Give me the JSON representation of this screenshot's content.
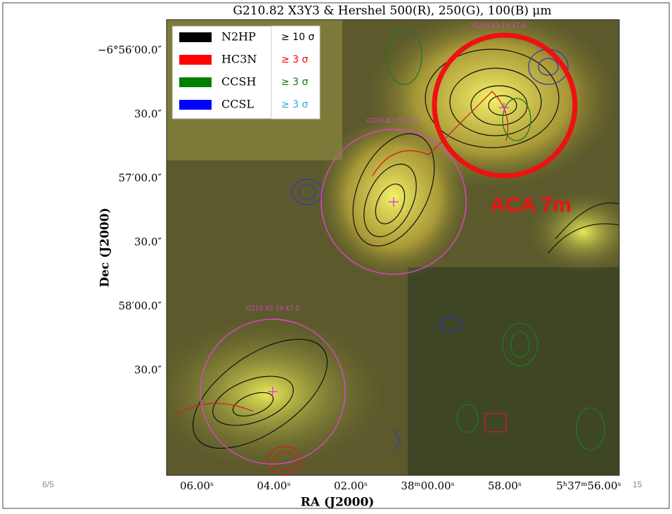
{
  "slide": {
    "title": "G210.82 X3Y3 & Hershel 500(R), 250(G), 100(B) μm",
    "legend": [
      {
        "name": "N2HP",
        "threshold": "≥ 10 σ",
        "color": "#000000"
      },
      {
        "name": "HC3N",
        "threshold": "≥ 3 σ",
        "color": "#ff0000"
      },
      {
        "name": "CCSH",
        "threshold": "≥ 3 σ",
        "color": "#008000"
      },
      {
        "name": "CCSL",
        "threshold": "≥ 3 σ",
        "color": "#0000ff"
      }
    ],
    "y_axis_label": "Dec (J2000)",
    "x_axis_label": "RA (J2000)",
    "y_tick_labels": [
      "−6°56′00.0″",
      "30.0″",
      "57′00.0″",
      "30.0″",
      "58′00.0″",
      "30.0″"
    ],
    "x_tick_labels": [
      "06.00ˢ",
      "04.00ˢ",
      "02.00ˢ",
      "38ᵐ00.00ˢ",
      "58.00ˢ",
      "5ʰ37ᵐ56.00ˢ"
    ],
    "source_labels": [
      "G210.82-19.47-0",
      "G210.82-19.47-1",
      "G210.82-19.47-2"
    ],
    "annotation": "ACA 7m",
    "footer_date": "6/5",
    "page_number": "15"
  }
}
